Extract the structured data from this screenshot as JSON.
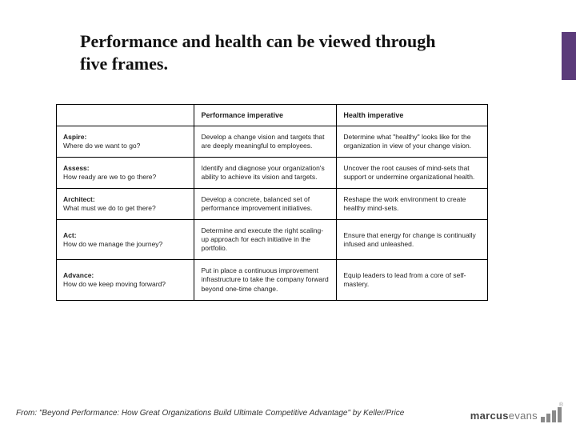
{
  "title": "Performance and health can be viewed through five frames.",
  "accent_color": "#5b3b7a",
  "table": {
    "columns": [
      "",
      "Performance imperative",
      "Health imperative"
    ],
    "rows": [
      {
        "phase": "Aspire:",
        "q": "Where do we want to go?",
        "perf": "Develop a change vision and targets that are deeply meaningful to employees.",
        "health": "Determine what \"healthy\" looks like for the organization in view of your change vision."
      },
      {
        "phase": "Assess:",
        "q": "How ready are we to go there?",
        "perf": "Identify and diagnose your organization's ability to achieve its vision and targets.",
        "health": "Uncover the root causes of mind-sets that support or undermine organizational health."
      },
      {
        "phase": "Architect:",
        "q": "What must we do to get there?",
        "perf": "Develop a concrete, balanced set of performance improvement initiatives.",
        "health": "Reshape the work environment to create healthy mind-sets."
      },
      {
        "phase": "Act:",
        "q": "How do we manage the journey?",
        "perf": "Determine and execute the right scaling-up approach for each initiative in the portfolio.",
        "health": "Ensure that energy for change is continually infused and unleashed."
      },
      {
        "phase": "Advance:",
        "q": "How do we keep moving forward?",
        "perf": "Put in place a continuous improvement infrastructure to take the company forward beyond one-time change.",
        "health": "Equip leaders to lead from a core of self-mastery."
      }
    ]
  },
  "source": "From: \"Beyond Performance: How Great Organizations Build Ultimate Competitive Advantage\" by Keller/Price",
  "logo": {
    "bold": "marcus",
    "light": "evans",
    "bar_color": "#8a8a8a"
  }
}
